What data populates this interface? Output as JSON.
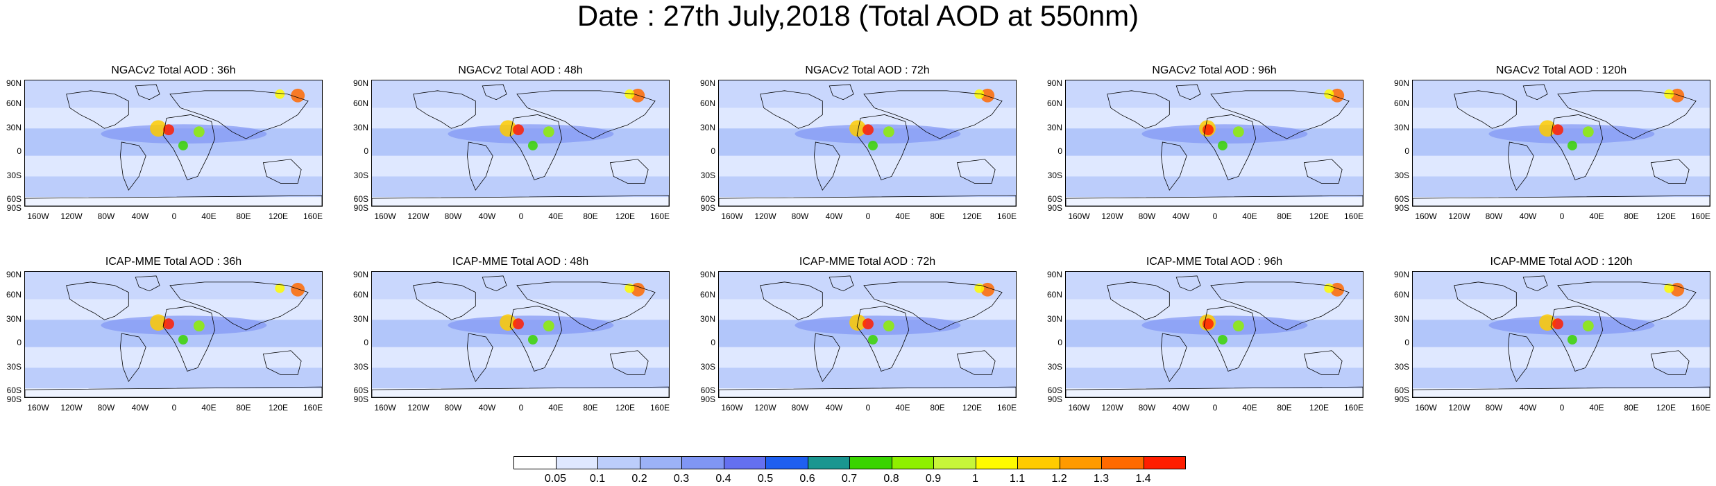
{
  "title": "Date : 27th July,2018 (Total AOD at 550nm)",
  "lat_labels": [
    "90N",
    "60N",
    "30N",
    "0",
    "30S",
    "60S",
    "90S"
  ],
  "lon_labels": [
    "160W",
    "120W",
    "80W",
    "40W",
    "0",
    "40E",
    "80E",
    "120E",
    "160E"
  ],
  "panels": [
    {
      "title": "NGACv2 Total AOD : 36h"
    },
    {
      "title": "NGACv2 Total AOD : 48h"
    },
    {
      "title": "NGACv2 Total AOD : 72h"
    },
    {
      "title": "NGACv2 Total AOD : 96h"
    },
    {
      "title": "NGACv2 Total AOD : 120h"
    },
    {
      "title": "ICAP-MME Total AOD : 36h"
    },
    {
      "title": "ICAP-MME Total AOD : 48h"
    },
    {
      "title": "ICAP-MME Total AOD : 72h"
    },
    {
      "title": "ICAP-MME Total AOD : 96h"
    },
    {
      "title": "ICAP-MME Total AOD : 120h"
    }
  ],
  "colorbar": {
    "labels": [
      "0.05",
      "0.1",
      "0.2",
      "0.3",
      "0.4",
      "0.5",
      "0.6",
      "0.7",
      "0.8",
      "0.9",
      "1",
      "1.1",
      "1.2",
      "1.3",
      "1.4"
    ],
    "colors": [
      "#ffffff",
      "#dfe8ff",
      "#bccdfb",
      "#9cb2f7",
      "#8096f4",
      "#6470f0",
      "#1f5ff0",
      "#1a9690",
      "#39d400",
      "#8ff000",
      "#c7f53a",
      "#fffb00",
      "#ffcb00",
      "#ff9a00",
      "#ff6a00",
      "#ff1e00"
    ]
  }
}
